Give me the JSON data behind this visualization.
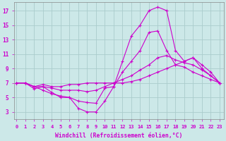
{
  "xlabel": "Windchill (Refroidissement éolien,°C)",
  "background_color": "#cce8e8",
  "grid_color": "#aacccc",
  "line_color": "#cc00cc",
  "x_ticks": [
    0,
    1,
    2,
    3,
    4,
    5,
    6,
    7,
    8,
    9,
    10,
    11,
    12,
    13,
    14,
    15,
    16,
    17,
    18,
    19,
    20,
    21,
    22,
    23
  ],
  "y_ticks": [
    3,
    5,
    7,
    9,
    11,
    13,
    15,
    17
  ],
  "ylim": [
    2.0,
    18.2
  ],
  "xlim": [
    -0.3,
    23.5
  ],
  "lines": [
    [
      7.0,
      7.0,
      6.5,
      6.0,
      5.5,
      5.2,
      5.0,
      3.5,
      3.0,
      3.0,
      4.5,
      6.5,
      10.0,
      13.5,
      15.0,
      17.0,
      17.5,
      17.0,
      11.5,
      10.0,
      10.5,
      9.0,
      8.0,
      7.0
    ],
    [
      7.0,
      7.0,
      6.2,
      6.5,
      5.7,
      5.0,
      5.0,
      4.5,
      4.3,
      4.2,
      6.3,
      6.5,
      8.5,
      10.0,
      11.5,
      14.0,
      14.2,
      11.5,
      9.5,
      9.2,
      8.5,
      8.0,
      7.5,
      7.0
    ],
    [
      7.0,
      7.0,
      6.5,
      6.5,
      6.3,
      6.0,
      6.0,
      6.0,
      5.8,
      6.0,
      6.5,
      7.0,
      7.5,
      8.0,
      8.8,
      9.5,
      10.5,
      10.8,
      10.2,
      9.8,
      9.5,
      8.8,
      8.0,
      7.0
    ],
    [
      7.0,
      7.0,
      6.5,
      6.8,
      6.5,
      6.5,
      6.8,
      6.8,
      7.0,
      7.0,
      7.0,
      7.0,
      7.0,
      7.2,
      7.5,
      8.0,
      8.5,
      9.0,
      9.5,
      10.0,
      10.5,
      9.5,
      8.5,
      7.0
    ]
  ]
}
